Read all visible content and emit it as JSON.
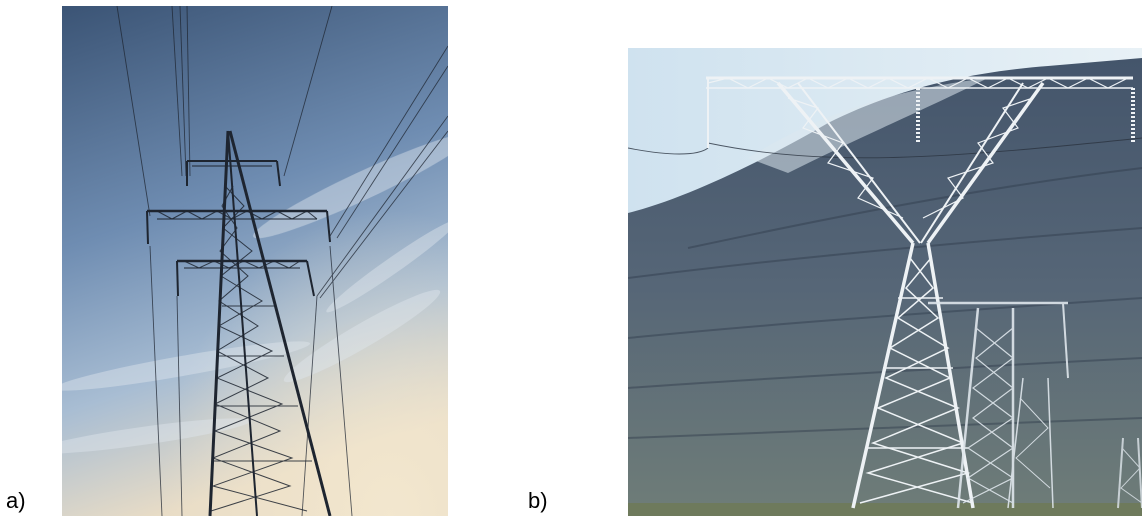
{
  "figure": {
    "panels": [
      {
        "label": "a)",
        "subject": "lattice-transmission-tower-against-sky"
      },
      {
        "label": "b)",
        "subject": "white-lattice-transmission-towers-before-hillside"
      }
    ]
  },
  "colors": {
    "sky_top": "#3d5677",
    "sky_mid": "#7b97ba",
    "sky_bottom": "#e6d9c2",
    "tower_dark": "#1f2630",
    "tower_light": "#e9eef2",
    "hill_dark": "#3e4e63",
    "hill_light": "#7d8a86",
    "pale_sky": "#d3e4f0"
  }
}
